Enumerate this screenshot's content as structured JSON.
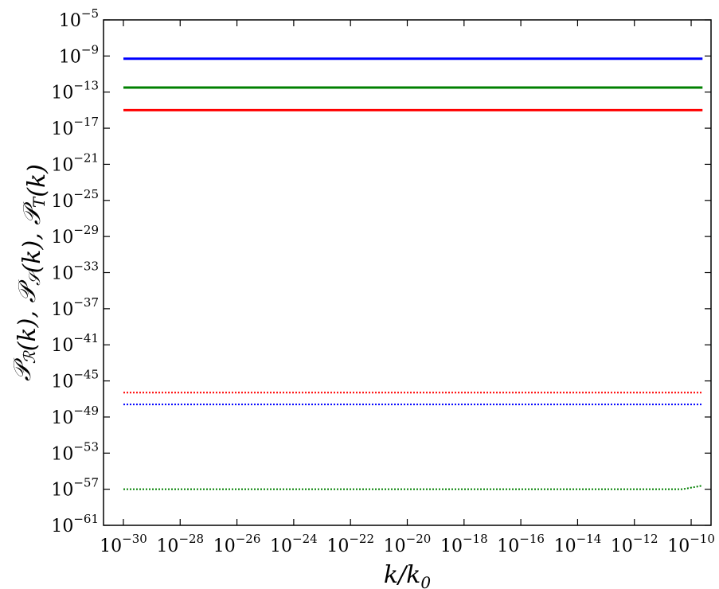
{
  "chart_data": {
    "type": "line",
    "title": "",
    "xlabel": {
      "main": "k/k",
      "sub": "0"
    },
    "ylabel": {
      "parts": [
        {
          "text": "𝒫",
          "sub": "ℛ"
        },
        {
          "text": "(k), "
        },
        {
          "text": "𝒫",
          "sub": "𝒮"
        },
        {
          "text": "(k), "
        },
        {
          "text": "𝒫",
          "sub": "T"
        },
        {
          "text": "(k)"
        }
      ]
    },
    "x_scale": "log",
    "y_scale": "log",
    "xlim_exp": [
      -30.7,
      -9.3
    ],
    "ylim_exp": [
      -61,
      -5
    ],
    "x_tick_exps": [
      -30,
      -28,
      -26,
      -24,
      -22,
      -20,
      -18,
      -16,
      -14,
      -12,
      -10
    ],
    "y_tick_exps": [
      -5,
      -9,
      -13,
      -17,
      -21,
      -25,
      -29,
      -33,
      -37,
      -41,
      -45,
      -49,
      -53,
      -57,
      -61
    ],
    "x_tick_labels": [
      "10",
      "10",
      "10",
      "10",
      "10",
      "10",
      "10",
      "10",
      "10",
      "10",
      "10"
    ],
    "x_tick_label_exps": [
      "−30",
      "−28",
      "−26",
      "−24",
      "−22",
      "−20",
      "−18",
      "−16",
      "−14",
      "−12",
      "−10"
    ],
    "y_tick_labels": [
      "10",
      "10",
      "10",
      "10",
      "10",
      "10",
      "10",
      "10",
      "10",
      "10",
      "10",
      "10",
      "10",
      "10",
      "10"
    ],
    "y_tick_label_exps": [
      "−5",
      "−9",
      "−13",
      "−17",
      "−21",
      "−25",
      "−29",
      "−33",
      "−37",
      "−41",
      "−45",
      "−49",
      "−53",
      "−57",
      "−61"
    ],
    "series": [
      {
        "color": "#0000ff",
        "style": "solid",
        "x_exp": [
          -30,
          -9.6
        ],
        "y_exp": [
          -9.3,
          -9.3
        ]
      },
      {
        "color": "#008000",
        "style": "solid",
        "x_exp": [
          -30,
          -9.6
        ],
        "y_exp": [
          -12.5,
          -12.5
        ]
      },
      {
        "color": "#ff0000",
        "style": "solid",
        "x_exp": [
          -30,
          -9.6
        ],
        "y_exp": [
          -15.0,
          -15.0
        ]
      },
      {
        "color": "#ff0000",
        "style": "dotted",
        "x_exp": [
          -30,
          -9.6
        ],
        "y_exp": [
          -46.3,
          -46.3
        ]
      },
      {
        "color": "#0000ff",
        "style": "dotted",
        "x_exp": [
          -30,
          -9.6
        ],
        "y_exp": [
          -47.6,
          -47.6
        ]
      },
      {
        "color": "#008000",
        "style": "dotted",
        "x_exp": [
          -30,
          -10.3,
          -9.6
        ],
        "y_exp": [
          -57.0,
          -57.0,
          -56.6
        ]
      }
    ]
  }
}
